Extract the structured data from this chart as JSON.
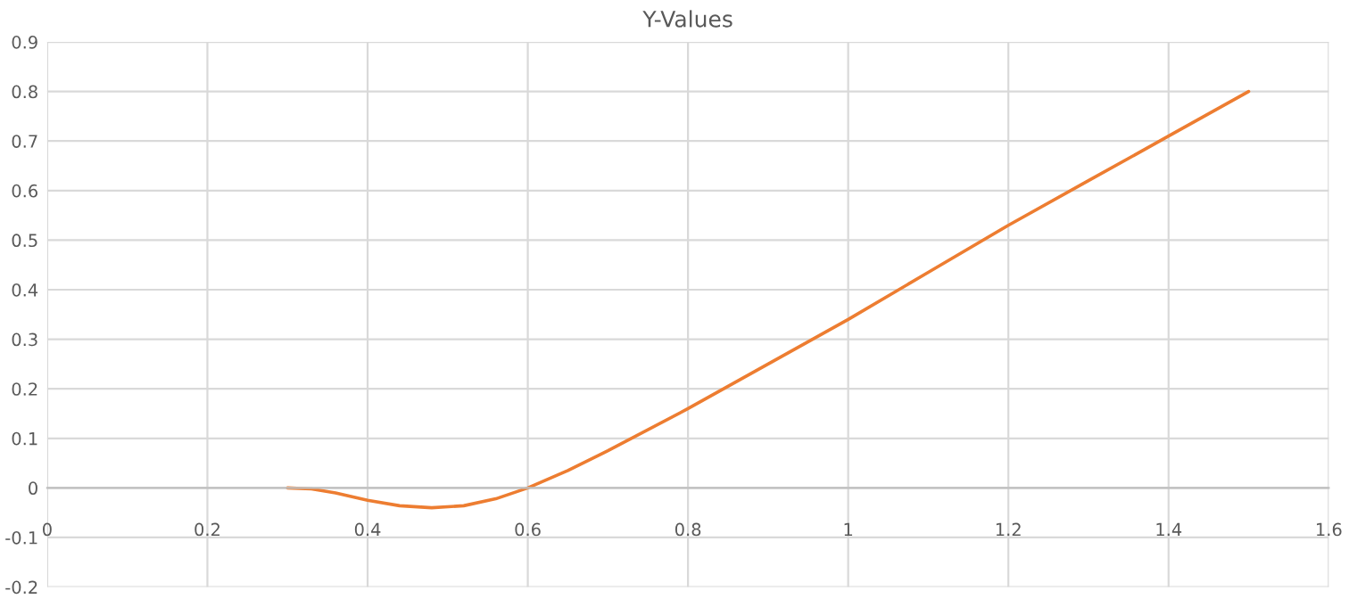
{
  "chart_data": {
    "type": "line",
    "title": "Y-Values",
    "x": [
      0.3,
      0.33,
      0.36,
      0.4,
      0.44,
      0.48,
      0.52,
      0.56,
      0.6,
      0.65,
      0.7,
      0.8,
      0.9,
      1.0,
      1.1,
      1.2,
      1.3,
      1.4,
      1.5
    ],
    "series": [
      {
        "color": "#ed7d31",
        "values": [
          0,
          -0.002,
          -0.01,
          -0.025,
          -0.036,
          -0.04,
          -0.036,
          -0.022,
          0,
          0.035,
          0.075,
          0.16,
          0.25,
          0.34,
          0.435,
          0.53,
          0.62,
          0.71,
          0.8
        ]
      }
    ],
    "xlim": [
      0,
      1.6
    ],
    "xticks": [
      0,
      0.2,
      0.4,
      0.6,
      0.8,
      1,
      1.2,
      1.4,
      1.6
    ],
    "ylim": [
      -0.2,
      0.9
    ],
    "yticks": [
      -0.2,
      -0.1,
      0,
      0.1,
      0.2,
      0.3,
      0.4,
      0.5,
      0.6,
      0.7,
      0.8,
      0.9
    ],
    "grid": true,
    "marker": "none",
    "line_style": "solid"
  }
}
